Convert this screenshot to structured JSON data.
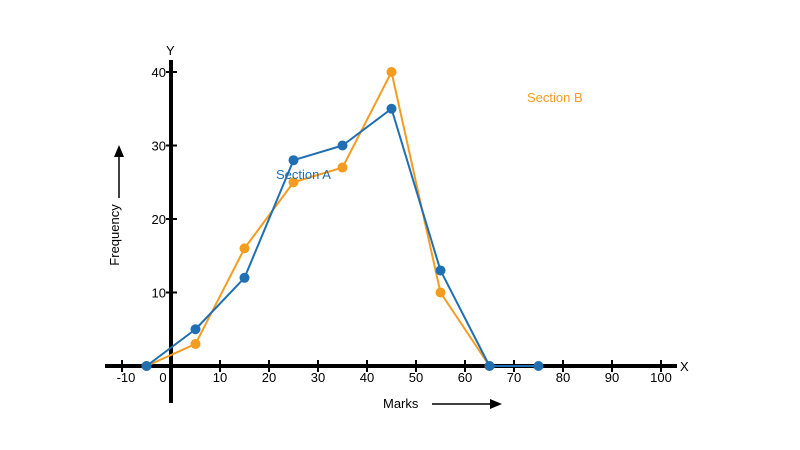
{
  "chart_data": {
    "type": "line",
    "xlabel": "Marks",
    "ylabel": "Frequency",
    "x_axis_letter": "X",
    "y_axis_letter": "Y",
    "x_ticks": [
      "-10",
      "0",
      "10",
      "20",
      "30",
      "40",
      "50",
      "60",
      "70",
      "80",
      "90",
      "100"
    ],
    "y_ticks": [
      "10",
      "20",
      "30",
      "40"
    ],
    "xlim": [
      -10,
      100
    ],
    "ylim": [
      -5,
      42
    ],
    "grid": false,
    "series": [
      {
        "name": "Section A",
        "color": "#1f6fb2",
        "x": [
          -5,
          5,
          15,
          25,
          35,
          45,
          55,
          65,
          75
        ],
        "y": [
          0,
          5,
          12,
          28,
          30,
          35,
          13,
          0,
          0
        ]
      },
      {
        "name": "Section B",
        "color": "#f39c1f",
        "x": [
          -5,
          5,
          15,
          25,
          35,
          45,
          55,
          65
        ],
        "y": [
          0,
          3,
          16,
          25,
          27,
          40,
          10,
          0
        ]
      }
    ]
  }
}
